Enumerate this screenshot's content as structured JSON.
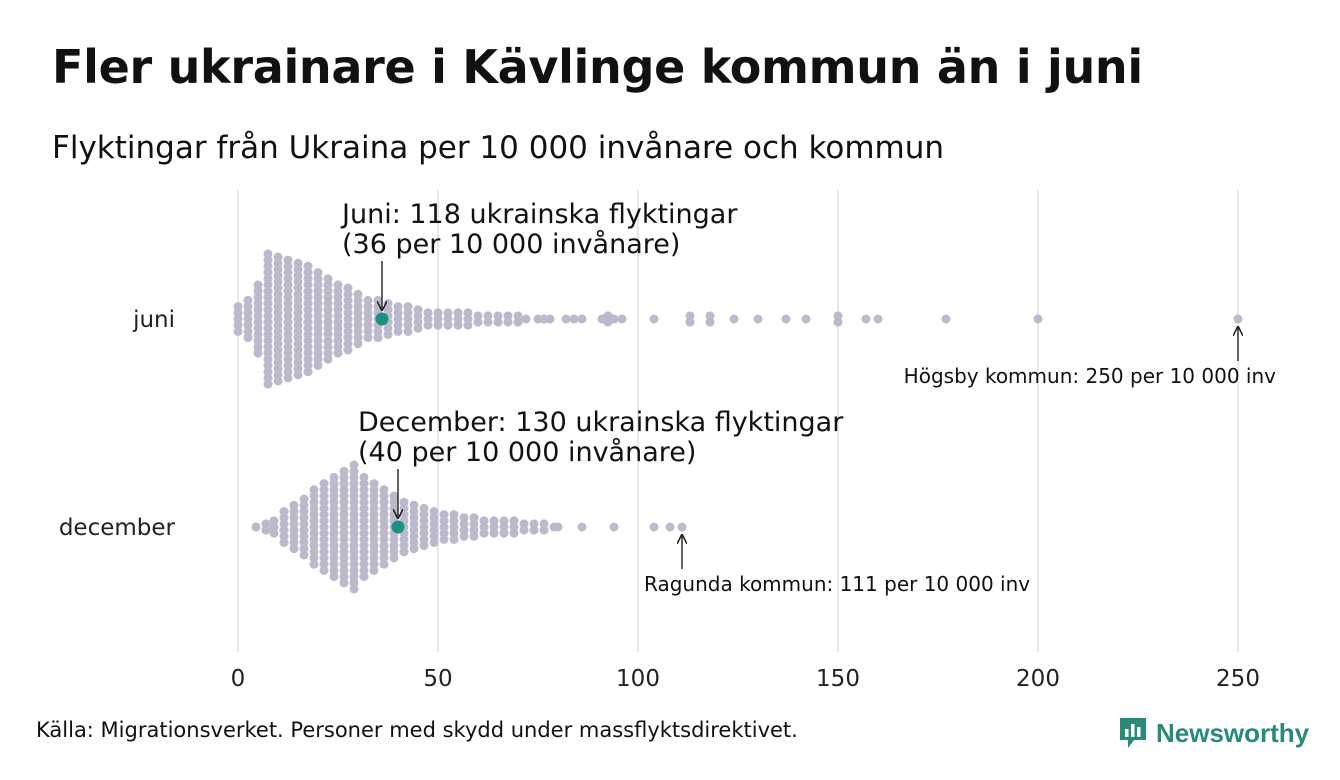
{
  "title": "Fler ukrainare i Kävlinge kommun än i juni",
  "subtitle": "Flyktingar från Ukraina per 10 000 invånare och kommun",
  "source": "Källa: Migrationsverket. Personer med skydd under massflyktsdirektivet.",
  "logo": {
    "text": "Newsworthy",
    "icon": "newsworthy-bar-chart-logo-icon",
    "color": "#2a8a78"
  },
  "chart_data": {
    "type": "beeswarm",
    "x_range": [
      0,
      250
    ],
    "x_ticks": [
      0,
      50,
      100,
      150,
      200,
      250
    ],
    "grid": true,
    "point_color": "#bbb9cc",
    "highlight_color": "#1a9182",
    "series": [
      {
        "name": "juni",
        "highlight": {
          "value": 36,
          "label_line1": "Juni: 118 ukrainska flyktingar",
          "label_line2": "(36 per 10 000 invånare)"
        },
        "max_annotation": {
          "value": 250,
          "label": "Högsby kommun: 250 per 10 000 inv"
        },
        "bins": [
          {
            "x": 0,
            "n": 5
          },
          {
            "x": 2.5,
            "n": 7
          },
          {
            "x": 5,
            "n": 12
          },
          {
            "x": 7.5,
            "n": 22
          },
          {
            "x": 10,
            "n": 21
          },
          {
            "x": 12.5,
            "n": 20
          },
          {
            "x": 15,
            "n": 19
          },
          {
            "x": 17.5,
            "n": 18
          },
          {
            "x": 20,
            "n": 16
          },
          {
            "x": 22.5,
            "n": 14
          },
          {
            "x": 25,
            "n": 12
          },
          {
            "x": 27.5,
            "n": 11
          },
          {
            "x": 30,
            "n": 9
          },
          {
            "x": 32.5,
            "n": 7
          },
          {
            "x": 35,
            "n": 7
          },
          {
            "x": 37.5,
            "n": 6
          },
          {
            "x": 40,
            "n": 5
          },
          {
            "x": 42.5,
            "n": 5
          },
          {
            "x": 45,
            "n": 4
          },
          {
            "x": 47.5,
            "n": 3
          },
          {
            "x": 50,
            "n": 3
          },
          {
            "x": 52.5,
            "n": 3
          },
          {
            "x": 55,
            "n": 3
          },
          {
            "x": 57.5,
            "n": 3
          },
          {
            "x": 60,
            "n": 2
          },
          {
            "x": 62.5,
            "n": 2
          },
          {
            "x": 65,
            "n": 2
          },
          {
            "x": 67.5,
            "n": 2
          },
          {
            "x": 70,
            "n": 2
          },
          {
            "x": 72,
            "n": 1
          },
          {
            "x": 75,
            "n": 1
          },
          {
            "x": 76.5,
            "n": 1
          },
          {
            "x": 78,
            "n": 1
          },
          {
            "x": 82,
            "n": 1
          },
          {
            "x": 84,
            "n": 1
          },
          {
            "x": 86,
            "n": 1
          },
          {
            "x": 91,
            "n": 1
          },
          {
            "x": 92.5,
            "n": 2
          },
          {
            "x": 94,
            "n": 1
          },
          {
            "x": 96,
            "n": 1
          },
          {
            "x": 104,
            "n": 1
          },
          {
            "x": 113,
            "n": 2
          },
          {
            "x": 118,
            "n": 2
          },
          {
            "x": 124,
            "n": 1
          },
          {
            "x": 130,
            "n": 1
          },
          {
            "x": 137,
            "n": 1
          },
          {
            "x": 142,
            "n": 1
          },
          {
            "x": 150,
            "n": 2
          },
          {
            "x": 157,
            "n": 1
          },
          {
            "x": 160,
            "n": 1
          },
          {
            "x": 177,
            "n": 1
          },
          {
            "x": 200,
            "n": 1
          },
          {
            "x": 250,
            "n": 1
          }
        ]
      },
      {
        "name": "december",
        "highlight": {
          "value": 40,
          "label_line1": "December: 130 ukrainska flyktingar",
          "label_line2": "(40 per 10 000 invånare)"
        },
        "max_annotation": {
          "value": 111,
          "label": "Ragunda kommun: 111 per 10 000 inv"
        },
        "bins": [
          {
            "x": 4.5,
            "n": 1
          },
          {
            "x": 7,
            "n": 2
          },
          {
            "x": 9,
            "n": 3
          },
          {
            "x": 11.5,
            "n": 6
          },
          {
            "x": 14,
            "n": 8
          },
          {
            "x": 16.5,
            "n": 10
          },
          {
            "x": 19,
            "n": 13
          },
          {
            "x": 21.5,
            "n": 15
          },
          {
            "x": 24,
            "n": 17
          },
          {
            "x": 26.5,
            "n": 19
          },
          {
            "x": 29,
            "n": 21
          },
          {
            "x": 31.5,
            "n": 17
          },
          {
            "x": 34,
            "n": 15
          },
          {
            "x": 36.5,
            "n": 13
          },
          {
            "x": 39,
            "n": 11
          },
          {
            "x": 41.5,
            "n": 9
          },
          {
            "x": 44,
            "n": 8
          },
          {
            "x": 46.5,
            "n": 7
          },
          {
            "x": 49,
            "n": 6
          },
          {
            "x": 51.5,
            "n": 5
          },
          {
            "x": 54,
            "n": 5
          },
          {
            "x": 56.5,
            "n": 4
          },
          {
            "x": 59,
            "n": 4
          },
          {
            "x": 61.5,
            "n": 3
          },
          {
            "x": 64,
            "n": 3
          },
          {
            "x": 66.5,
            "n": 3
          },
          {
            "x": 69,
            "n": 3
          },
          {
            "x": 71.5,
            "n": 2
          },
          {
            "x": 74,
            "n": 2
          },
          {
            "x": 76.5,
            "n": 2
          },
          {
            "x": 79,
            "n": 1
          },
          {
            "x": 80,
            "n": 1
          },
          {
            "x": 86,
            "n": 1
          },
          {
            "x": 94,
            "n": 1
          },
          {
            "x": 104,
            "n": 1
          },
          {
            "x": 108,
            "n": 1
          },
          {
            "x": 111,
            "n": 1
          }
        ]
      }
    ]
  }
}
